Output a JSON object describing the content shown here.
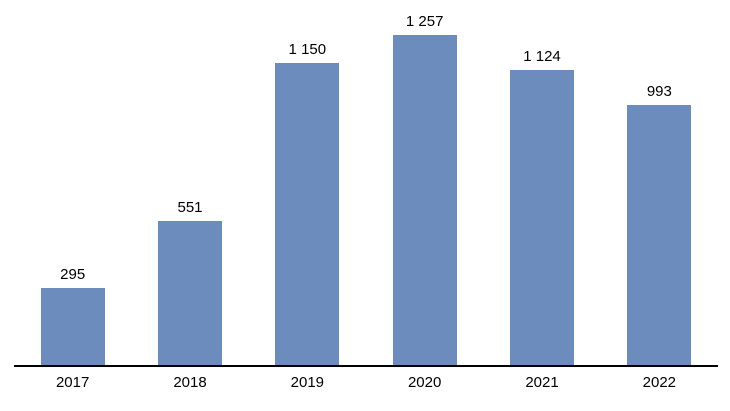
{
  "chart_data": {
    "type": "bar",
    "title": "",
    "xlabel": "",
    "ylabel": "",
    "categories": [
      "2017",
      "2018",
      "2019",
      "2020",
      "2021",
      "2022"
    ],
    "values": [
      295,
      551,
      1150,
      1257,
      1124,
      993
    ],
    "value_labels": [
      "295",
      "551",
      "1 150",
      "1 257",
      "1 124",
      "993"
    ],
    "ylim": [
      0,
      1257
    ],
    "grid": false,
    "legend": false,
    "data_labels_visible": true,
    "thousands_separator": " ",
    "colors": {
      "bar_fill": "#6D8CBE",
      "axis_line": "#000000",
      "data_label_text": "#000000",
      "axis_label_text": "#000000",
      "background": "#FFFFFF"
    }
  }
}
